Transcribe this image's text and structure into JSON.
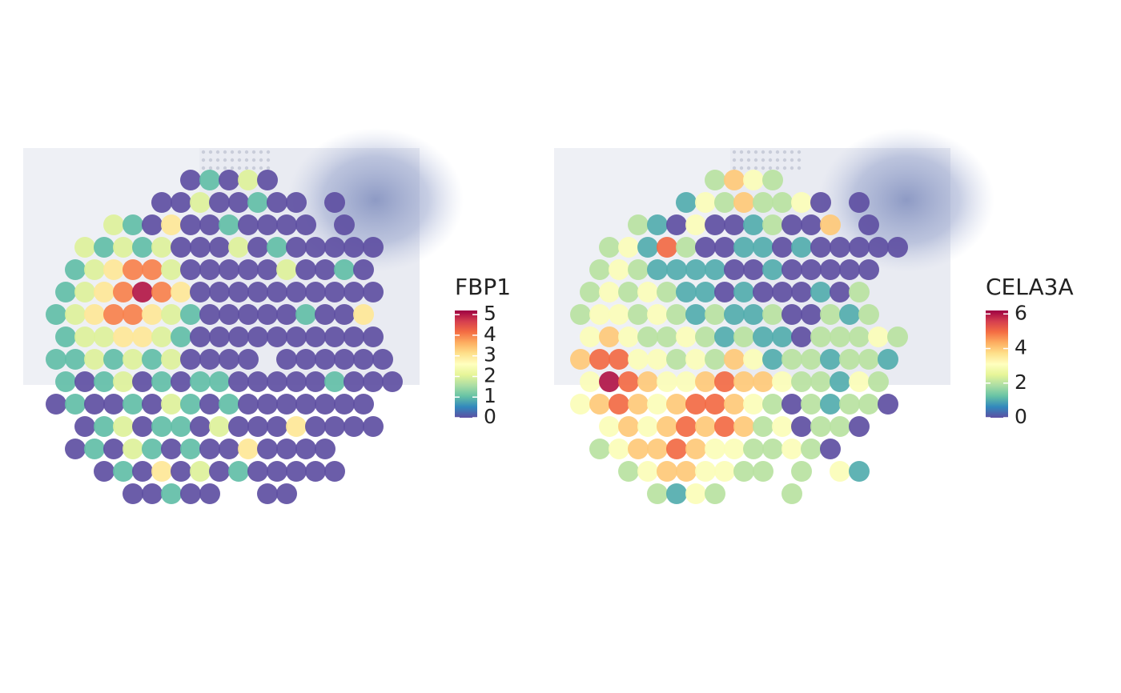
{
  "chart_data": [
    {
      "type": "spatial",
      "legend_title": "FBP1",
      "limits": [
        0,
        5.2
      ],
      "ticks": [
        0,
        1,
        2,
        3,
        4,
        5
      ],
      "colorscale": [
        "#5E4FA2",
        "#3288BD",
        "#66C2A5",
        "#ABDDA4",
        "#E6F598",
        "#FFFFBF",
        "#FEE08B",
        "#FDAE61",
        "#F46D43",
        "#D53E4F",
        "#9E0142"
      ],
      "spots": [
        [
          null,
          null,
          null,
          null,
          null,
          null,
          null,
          0,
          1,
          0,
          2,
          0,
          null,
          null,
          null,
          null,
          null,
          null
        ],
        [
          null,
          null,
          null,
          null,
          null,
          0,
          0,
          2,
          0,
          0,
          1,
          0,
          0,
          null,
          0,
          null,
          null,
          null
        ],
        [
          null,
          null,
          null,
          2,
          1,
          0,
          3,
          0,
          0,
          1,
          0,
          0,
          0,
          0,
          null,
          0,
          null,
          null
        ],
        [
          null,
          2,
          1,
          2,
          1,
          2,
          0,
          0,
          0,
          2,
          0,
          1,
          0,
          0,
          0,
          0,
          0,
          null
        ],
        [
          null,
          1,
          2,
          3,
          4,
          4,
          2,
          0,
          0,
          0,
          0,
          0,
          2,
          0,
          0,
          1,
          0,
          null
        ],
        [
          1,
          2,
          3,
          4,
          5,
          4,
          3,
          0,
          0,
          0,
          0,
          0,
          0,
          0,
          0,
          0,
          0,
          null
        ],
        [
          1,
          2,
          3,
          4,
          4,
          3,
          2,
          1,
          0,
          0,
          0,
          0,
          0,
          1,
          0,
          0,
          3,
          null
        ],
        [
          1,
          2,
          2,
          3,
          3,
          2,
          1,
          0,
          0,
          0,
          0,
          0,
          0,
          0,
          0,
          0,
          0,
          null
        ],
        [
          1,
          1,
          2,
          1,
          2,
          1,
          2,
          0,
          0,
          0,
          0,
          null,
          0,
          0,
          0,
          0,
          0,
          0
        ],
        [
          1,
          0,
          1,
          2,
          0,
          1,
          0,
          1,
          1,
          0,
          0,
          0,
          0,
          0,
          1,
          0,
          0,
          0
        ],
        [
          0,
          1,
          0,
          0,
          1,
          0,
          2,
          1,
          0,
          1,
          0,
          0,
          0,
          0,
          0,
          0,
          0,
          null
        ],
        [
          null,
          0,
          1,
          2,
          0,
          1,
          1,
          0,
          2,
          0,
          0,
          0,
          3,
          0,
          0,
          0,
          0,
          null
        ],
        [
          null,
          0,
          1,
          0,
          2,
          1,
          0,
          1,
          0,
          0,
          3,
          0,
          0,
          0,
          0,
          null,
          null,
          null
        ],
        [
          null,
          null,
          0,
          1,
          0,
          3,
          0,
          2,
          0,
          1,
          0,
          0,
          0,
          0,
          0,
          null,
          null,
          null
        ],
        [
          null,
          null,
          null,
          null,
          0,
          0,
          1,
          0,
          0,
          null,
          null,
          0,
          0,
          null,
          null,
          null,
          null,
          null
        ]
      ]
    },
    {
      "type": "spatial",
      "legend_title": "CELA3A",
      "limits": [
        0,
        6.2
      ],
      "ticks": [
        0,
        2,
        4,
        6
      ],
      "colorscale": [
        "#5E4FA2",
        "#3288BD",
        "#66C2A5",
        "#ABDDA4",
        "#E6F598",
        "#FFFFBF",
        "#FEE08B",
        "#FDAE61",
        "#F46D43",
        "#D53E4F",
        "#9E0142"
      ],
      "spots": [
        [
          null,
          null,
          null,
          null,
          null,
          null,
          null,
          2,
          4,
          3,
          2,
          null,
          null,
          null,
          null,
          null,
          null,
          null
        ],
        [
          null,
          null,
          null,
          null,
          null,
          1,
          3,
          2,
          4,
          2,
          2,
          3,
          0,
          null,
          0,
          null,
          null,
          null
        ],
        [
          null,
          null,
          null,
          2,
          1,
          0,
          3,
          0,
          0,
          1,
          2,
          0,
          0,
          4,
          null,
          0,
          null,
          null
        ],
        [
          null,
          2,
          3,
          1,
          5,
          2,
          0,
          0,
          1,
          1,
          0,
          1,
          0,
          0,
          0,
          0,
          0,
          null
        ],
        [
          null,
          2,
          3,
          2,
          1,
          1,
          1,
          1,
          0,
          0,
          1,
          0,
          0,
          0,
          0,
          0,
          null,
          null
        ],
        [
          2,
          3,
          2,
          3,
          2,
          1,
          1,
          0,
          1,
          0,
          0,
          0,
          1,
          0,
          2,
          null,
          null,
          null
        ],
        [
          2,
          3,
          3,
          2,
          3,
          2,
          1,
          2,
          1,
          1,
          2,
          0,
          0,
          2,
          1,
          2,
          null,
          null
        ],
        [
          3,
          4,
          3,
          2,
          2,
          3,
          2,
          1,
          2,
          1,
          1,
          0,
          2,
          2,
          2,
          3,
          2,
          null
        ],
        [
          4,
          5,
          5,
          3,
          3,
          2,
          3,
          2,
          4,
          3,
          1,
          2,
          2,
          1,
          2,
          2,
          1,
          null
        ],
        [
          3,
          6,
          5,
          4,
          3,
          3,
          4,
          5,
          4,
          4,
          3,
          2,
          2,
          1,
          3,
          2,
          null,
          null
        ],
        [
          3,
          4,
          5,
          4,
          3,
          4,
          5,
          5,
          4,
          3,
          2,
          0,
          2,
          1,
          2,
          2,
          0,
          null
        ],
        [
          null,
          3,
          4,
          3,
          4,
          5,
          4,
          5,
          4,
          2,
          3,
          0,
          2,
          2,
          0,
          null,
          null,
          null
        ],
        [
          null,
          2,
          3,
          4,
          4,
          5,
          4,
          3,
          3,
          2,
          2,
          3,
          2,
          0,
          null,
          null,
          null,
          null
        ],
        [
          null,
          null,
          2,
          3,
          4,
          4,
          3,
          3,
          2,
          2,
          null,
          2,
          null,
          3,
          1,
          null,
          null,
          null
        ],
        [
          null,
          null,
          null,
          null,
          2,
          1,
          3,
          2,
          null,
          null,
          null,
          2,
          null,
          null,
          null,
          null,
          null,
          null
        ]
      ]
    }
  ]
}
